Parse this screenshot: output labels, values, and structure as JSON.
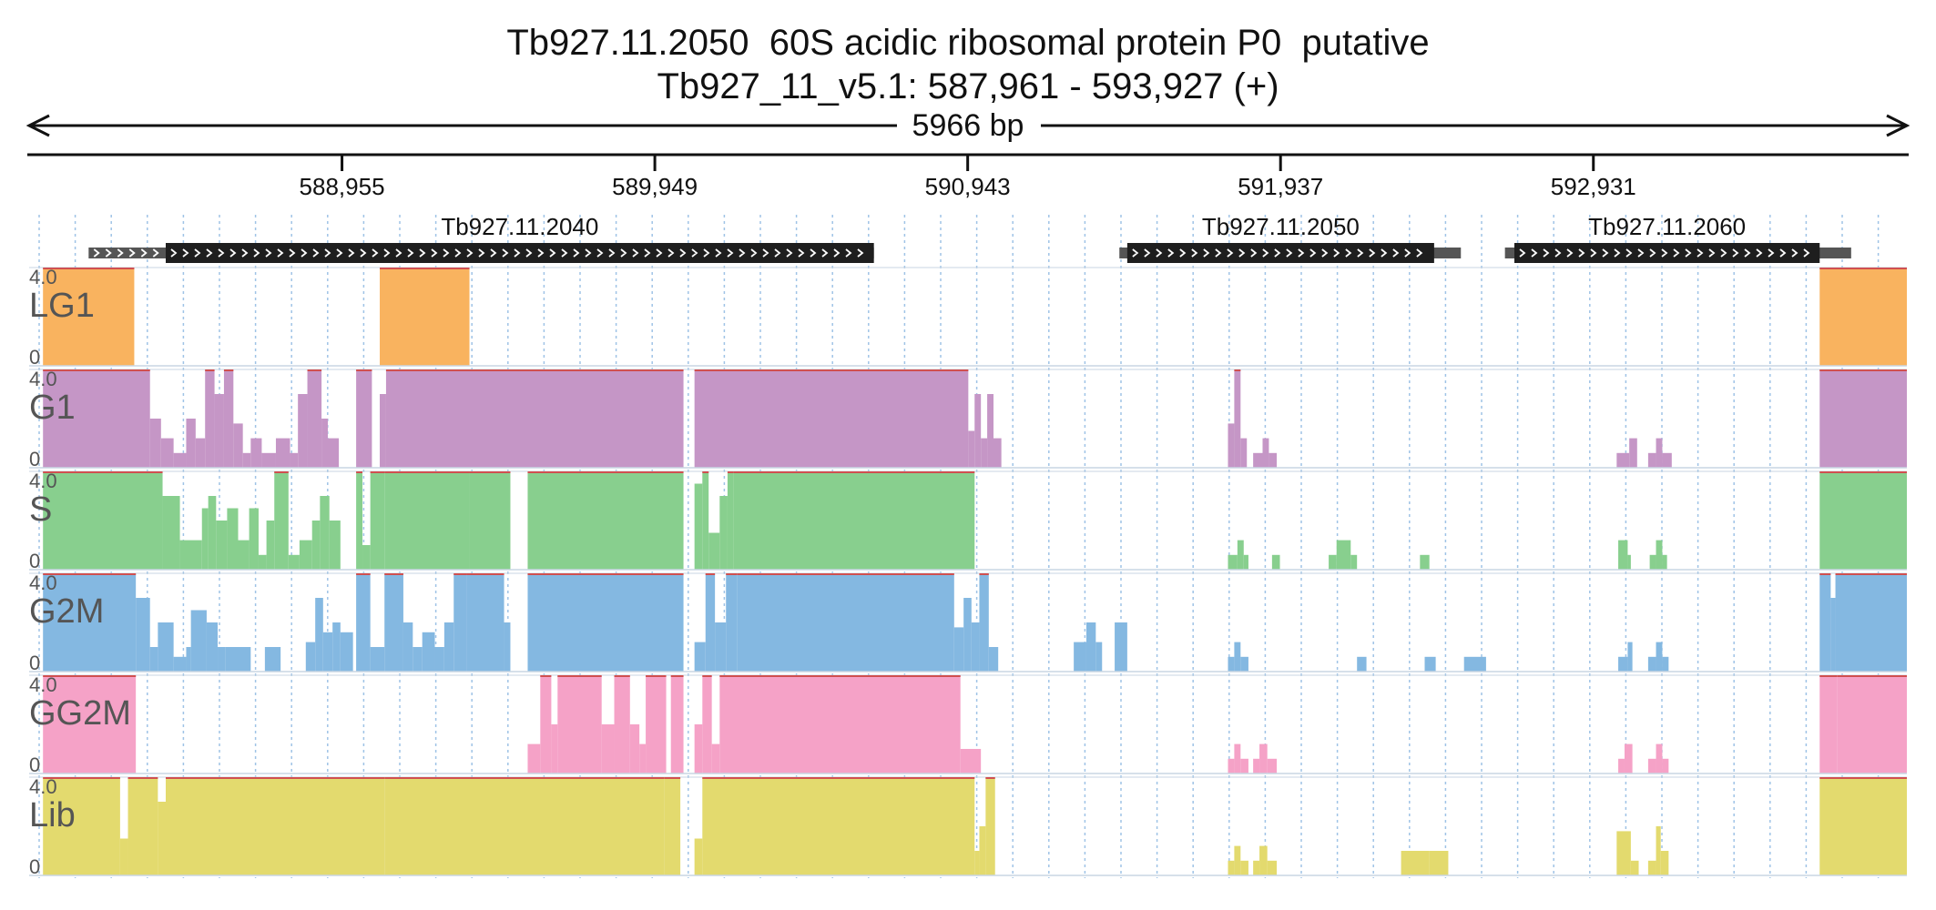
{
  "header": {
    "title": "Tb927.11.2050  60S acidic ribosomal protein P0  putative",
    "locus": "Tb927_11_v5.1: 587,961 - 593,927 (+)",
    "span_label": "5966 bp"
  },
  "region": {
    "start": 587961,
    "end": 593927,
    "strand": "+"
  },
  "ruler": {
    "ticks": [
      {
        "pos": 588955,
        "label": "588,955"
      },
      {
        "pos": 589949,
        "label": "589,949"
      },
      {
        "pos": 590943,
        "label": "590,943"
      },
      {
        "pos": 591937,
        "label": "591,937"
      },
      {
        "pos": 592931,
        "label": "592,931"
      }
    ]
  },
  "genes": [
    {
      "id": "Tb927.11.2040",
      "label": "Tb927.11.2040",
      "utr_start": 588150,
      "cds_start": 588395,
      "cds_end": 590645,
      "utr_end": 590645
    },
    {
      "id": "Tb927.11.2050",
      "label": "Tb927.11.2050",
      "utr_start": 591425,
      "cds_start": 591450,
      "cds_end": 592425,
      "utr_end": 592510
    },
    {
      "id": "Tb927.11.2060",
      "label": "Tb927.11.2060",
      "utr_start": 592650,
      "cds_start": 592680,
      "cds_end": 593650,
      "utr_end": 593750
    }
  ],
  "track_scale": {
    "max_label": "4.0",
    "min_label": "0",
    "max": 4.0
  },
  "tracks": [
    {
      "name": "LG1",
      "color": "#f9b35f",
      "segments": [
        [
          588005,
          588295,
          4
        ],
        [
          589075,
          589360,
          4
        ],
        [
          593650,
          593927,
          4
        ]
      ]
    },
    {
      "name": "G1",
      "color": "#c596c6",
      "segments": [
        [
          588005,
          588345,
          4
        ],
        [
          588345,
          588380,
          2
        ],
        [
          588380,
          588420,
          1.2
        ],
        [
          588420,
          588460,
          0.6
        ],
        [
          588460,
          588490,
          2
        ],
        [
          588490,
          588520,
          1.2
        ],
        [
          588520,
          588550,
          4
        ],
        [
          588550,
          588580,
          3
        ],
        [
          588580,
          588610,
          4
        ],
        [
          588610,
          588640,
          1.8
        ],
        [
          588640,
          588665,
          0.6
        ],
        [
          588665,
          588700,
          1.2
        ],
        [
          588700,
          588745,
          0.6
        ],
        [
          588745,
          588790,
          1.2
        ],
        [
          588790,
          588815,
          0.6
        ],
        [
          588815,
          588845,
          3
        ],
        [
          588845,
          588890,
          4
        ],
        [
          588890,
          588910,
          2
        ],
        [
          588910,
          588945,
          1.2
        ],
        [
          589000,
          589050,
          4
        ],
        [
          589075,
          589095,
          3
        ],
        [
          589095,
          590040,
          4
        ],
        [
          590075,
          590945,
          4
        ],
        [
          590945,
          590965,
          1.5
        ],
        [
          590965,
          590985,
          3
        ],
        [
          590985,
          591005,
          1.2
        ],
        [
          591005,
          591025,
          3
        ],
        [
          591025,
          591050,
          1.2
        ],
        [
          591770,
          591790,
          1.8
        ],
        [
          591790,
          591810,
          4
        ],
        [
          591810,
          591830,
          1.2
        ],
        [
          591850,
          591880,
          0.6
        ],
        [
          591880,
          591900,
          1.2
        ],
        [
          591900,
          591925,
          0.6
        ],
        [
          593005,
          593045,
          0.6
        ],
        [
          593045,
          593070,
          1.2
        ],
        [
          593105,
          593130,
          0.6
        ],
        [
          593130,
          593150,
          1.2
        ],
        [
          593150,
          593180,
          0.6
        ],
        [
          593650,
          593927,
          4
        ]
      ]
    },
    {
      "name": "S",
      "color": "#88cf8e",
      "segments": [
        [
          588005,
          588385,
          4
        ],
        [
          588385,
          588440,
          3
        ],
        [
          588440,
          588510,
          1.2
        ],
        [
          588510,
          588530,
          2.5
        ],
        [
          588530,
          588555,
          3
        ],
        [
          588555,
          588590,
          2
        ],
        [
          588590,
          588625,
          2.5
        ],
        [
          588625,
          588660,
          1.2
        ],
        [
          588660,
          588690,
          2.5
        ],
        [
          588690,
          588715,
          0.6
        ],
        [
          588715,
          588740,
          2
        ],
        [
          588740,
          588785,
          4
        ],
        [
          588785,
          588820,
          0.6
        ],
        [
          588820,
          588860,
          1.2
        ],
        [
          588860,
          588885,
          2
        ],
        [
          588885,
          588915,
          3
        ],
        [
          588915,
          588950,
          2
        ],
        [
          589000,
          589020,
          4
        ],
        [
          589020,
          589045,
          1
        ],
        [
          589045,
          589090,
          4
        ],
        [
          589090,
          589360,
          4
        ],
        [
          589360,
          589490,
          4
        ],
        [
          589545,
          590040,
          4
        ],
        [
          590075,
          590100,
          3.5
        ],
        [
          590100,
          590120,
          4
        ],
        [
          590120,
          590155,
          1.5
        ],
        [
          590155,
          590180,
          3
        ],
        [
          590180,
          590200,
          4
        ],
        [
          590200,
          590965,
          4
        ],
        [
          591770,
          591800,
          0.6
        ],
        [
          591800,
          591820,
          1.2
        ],
        [
          591820,
          591835,
          0.6
        ],
        [
          591910,
          591935,
          0.6
        ],
        [
          592090,
          592115,
          0.6
        ],
        [
          592115,
          592160,
          1.2
        ],
        [
          592160,
          592180,
          0.6
        ],
        [
          592380,
          592410,
          0.6
        ],
        [
          593010,
          593040,
          1.2
        ],
        [
          593040,
          593050,
          0.6
        ],
        [
          593110,
          593130,
          0.6
        ],
        [
          593130,
          593150,
          1.2
        ],
        [
          593150,
          593165,
          0.6
        ],
        [
          593650,
          593927,
          4
        ]
      ]
    },
    {
      "name": "G2M",
      "color": "#84b8e1",
      "segments": [
        [
          588005,
          588300,
          4
        ],
        [
          588300,
          588345,
          3
        ],
        [
          588345,
          588370,
          1
        ],
        [
          588370,
          588420,
          2
        ],
        [
          588420,
          588460,
          0.6
        ],
        [
          588460,
          588475,
          1
        ],
        [
          588475,
          588525,
          2.5
        ],
        [
          588525,
          588560,
          2
        ],
        [
          588560,
          588585,
          1
        ],
        [
          588585,
          588665,
          1
        ],
        [
          588710,
          588760,
          1
        ],
        [
          588840,
          588870,
          1.2
        ],
        [
          588870,
          588895,
          3
        ],
        [
          588895,
          588925,
          1.6
        ],
        [
          588925,
          588950,
          2
        ],
        [
          588950,
          588990,
          1.6
        ],
        [
          589000,
          589045,
          4
        ],
        [
          589045,
          589090,
          1
        ],
        [
          589090,
          589150,
          4
        ],
        [
          589150,
          589180,
          2
        ],
        [
          589180,
          589210,
          1
        ],
        [
          589210,
          589250,
          1.6
        ],
        [
          589250,
          589280,
          1
        ],
        [
          589280,
          589310,
          2
        ],
        [
          589310,
          589350,
          4
        ],
        [
          589350,
          589470,
          4
        ],
        [
          589470,
          589490,
          2
        ],
        [
          589545,
          590040,
          4
        ],
        [
          590075,
          590110,
          1.2
        ],
        [
          590110,
          590140,
          4
        ],
        [
          590140,
          590175,
          2
        ],
        [
          590175,
          590210,
          4
        ],
        [
          590210,
          590900,
          4
        ],
        [
          590900,
          590930,
          1.8
        ],
        [
          590930,
          590955,
          3
        ],
        [
          590955,
          590980,
          2
        ],
        [
          590980,
          591010,
          4
        ],
        [
          591010,
          591040,
          1
        ],
        [
          591280,
          591320,
          1.2
        ],
        [
          591320,
          591350,
          2
        ],
        [
          591350,
          591370,
          1.2
        ],
        [
          591410,
          591450,
          2
        ],
        [
          591770,
          591790,
          0.6
        ],
        [
          591790,
          591810,
          1.2
        ],
        [
          591810,
          591835,
          0.6
        ],
        [
          592180,
          592210,
          0.6
        ],
        [
          592395,
          592430,
          0.6
        ],
        [
          592520,
          592590,
          0.6
        ],
        [
          593010,
          593040,
          0.6
        ],
        [
          593040,
          593055,
          1.2
        ],
        [
          593105,
          593130,
          0.6
        ],
        [
          593130,
          593150,
          1.2
        ],
        [
          593150,
          593170,
          0.6
        ],
        [
          593650,
          593685,
          4
        ],
        [
          593685,
          593700,
          3
        ],
        [
          593700,
          593927,
          4
        ]
      ]
    },
    {
      "name": "GG2M",
      "color": "#f5a2c7",
      "segments": [
        [
          588005,
          588300,
          4
        ],
        [
          589545,
          589585,
          1.2
        ],
        [
          589585,
          589620,
          4
        ],
        [
          589620,
          589640,
          2
        ],
        [
          589640,
          589780,
          4
        ],
        [
          589780,
          589820,
          2
        ],
        [
          589820,
          589870,
          4
        ],
        [
          589870,
          589900,
          2
        ],
        [
          589900,
          589920,
          1.2
        ],
        [
          589920,
          589985,
          4
        ],
        [
          590000,
          590040,
          4
        ],
        [
          590075,
          590100,
          2
        ],
        [
          590100,
          590130,
          4
        ],
        [
          590130,
          590155,
          1.2
        ],
        [
          590155,
          590920,
          4
        ],
        [
          590920,
          590985,
          1
        ],
        [
          591770,
          591790,
          0.6
        ],
        [
          591790,
          591810,
          1.2
        ],
        [
          591810,
          591835,
          0.6
        ],
        [
          591850,
          591870,
          0.6
        ],
        [
          591870,
          591895,
          1.2
        ],
        [
          591895,
          591925,
          0.6
        ],
        [
          593010,
          593030,
          0.6
        ],
        [
          593030,
          593055,
          1.2
        ],
        [
          593105,
          593130,
          0.6
        ],
        [
          593130,
          593150,
          1.2
        ],
        [
          593150,
          593170,
          0.6
        ],
        [
          593650,
          593705,
          4
        ],
        [
          593705,
          593927,
          4
        ]
      ]
    },
    {
      "name": "Lib",
      "color": "#e3da6e",
      "segments": [
        [
          588005,
          588250,
          4
        ],
        [
          588250,
          588275,
          1.5
        ],
        [
          588275,
          588370,
          4
        ],
        [
          588370,
          588395,
          3
        ],
        [
          588395,
          589090,
          4
        ],
        [
          589090,
          589980,
          4
        ],
        [
          589980,
          590030,
          4
        ],
        [
          590075,
          590100,
          1.5
        ],
        [
          590100,
          590965,
          4
        ],
        [
          590965,
          590980,
          1
        ],
        [
          590980,
          591000,
          2
        ],
        [
          591000,
          591030,
          4
        ],
        [
          591770,
          591790,
          0.6
        ],
        [
          591790,
          591810,
          1.2
        ],
        [
          591810,
          591835,
          0.6
        ],
        [
          591850,
          591870,
          0.6
        ],
        [
          591870,
          591895,
          1.2
        ],
        [
          591895,
          591925,
          0.6
        ],
        [
          592320,
          592410,
          1
        ],
        [
          592410,
          592470,
          1
        ],
        [
          593005,
          593050,
          1.8
        ],
        [
          593050,
          593075,
          0.6
        ],
        [
          593105,
          593130,
          0.6
        ],
        [
          593130,
          593145,
          2
        ],
        [
          593145,
          593170,
          1
        ],
        [
          593650,
          593927,
          4
        ]
      ]
    }
  ]
}
